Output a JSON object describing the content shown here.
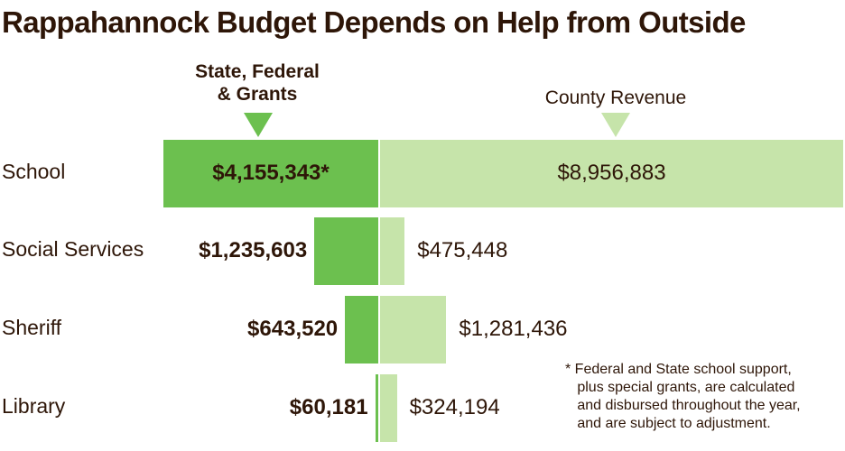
{
  "chart_data": {
    "type": "bar",
    "title": "Rappahannock Budget Depends on Help from Outside",
    "orientation": "horizontal-diverging",
    "categories": [
      "School",
      "Social Services",
      "Sheriff",
      "Library"
    ],
    "series": [
      {
        "name": "State, Federal & Grants",
        "values": [
          4155343,
          1235603,
          643520,
          60181
        ],
        "labels": [
          "$4,155,343*",
          "$1,235,603",
          "$643,520",
          "$60,181"
        ],
        "color": "#6cc04f"
      },
      {
        "name": "County Revenue",
        "values": [
          8956883,
          475448,
          1281436,
          324194
        ],
        "labels": [
          "$8,956,883",
          "$475,448",
          "$1,281,436",
          "$324,194"
        ],
        "color": "#c6e4aa"
      }
    ],
    "header_left": "State, Federal\n& Grants",
    "header_right": "County Revenue",
    "footnote": "* Federal and State school support,\n   plus special grants, are calculated\n   and disbursed throughout the year,\n   and are subject to adjustment."
  }
}
